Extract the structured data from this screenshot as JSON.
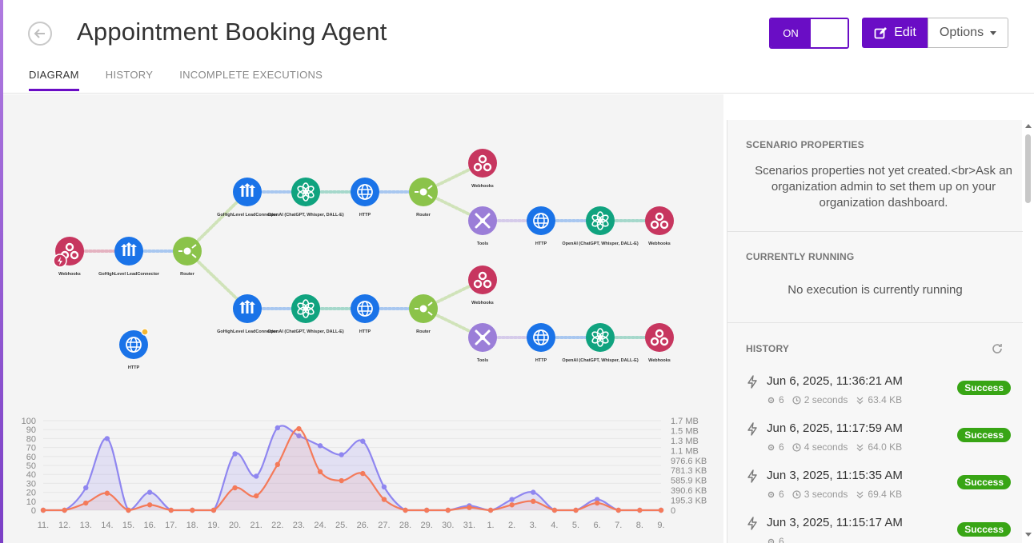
{
  "header": {
    "title": "Appointment Booking Agent",
    "toggle_label": "ON",
    "edit_label": "Edit",
    "options_label": "Options"
  },
  "tabs": [
    {
      "label": "DIAGRAM",
      "active": true
    },
    {
      "label": "HISTORY",
      "active": false
    },
    {
      "label": "INCOMPLETE EXECUTIONS",
      "active": false
    }
  ],
  "diagram": {
    "nodes": [
      {
        "label": "Webhooks",
        "icon": "webhook-icon",
        "color": "#c7365f"
      },
      {
        "label": "GoHighLevel LeadConnector",
        "icon": "gohighlevel-icon",
        "color": "#1a73e8"
      },
      {
        "label": "Router",
        "icon": "router-icon",
        "color": "#8bc34a"
      },
      {
        "label": "GoHighLevel LeadConnector",
        "icon": "gohighlevel-icon",
        "color": "#1a73e8"
      },
      {
        "label": "OpenAI (ChatGPT, Whisper, DALL-E)",
        "icon": "openai-icon",
        "color": "#10a37f"
      },
      {
        "label": "HTTP",
        "icon": "globe-icon",
        "color": "#1a73e8"
      },
      {
        "label": "Router",
        "icon": "router-icon",
        "color": "#8bc34a"
      },
      {
        "label": "Webhooks",
        "icon": "webhook-icon",
        "color": "#c7365f"
      },
      {
        "label": "Tools",
        "icon": "tools-icon",
        "color": "#9b7ed8"
      },
      {
        "label": "HTTP",
        "icon": "globe-icon",
        "color": "#1a73e8"
      },
      {
        "label": "OpenAI (ChatGPT, Whisper, DALL-E)",
        "icon": "openai-icon",
        "color": "#10a37f"
      },
      {
        "label": "Webhooks",
        "icon": "webhook-icon",
        "color": "#c7365f"
      },
      {
        "label": "GoHighLevel LeadConnector",
        "icon": "gohighlevel-icon",
        "color": "#1a73e8"
      },
      {
        "label": "OpenAI (ChatGPT, Whisper, DALL-E)",
        "icon": "openai-icon",
        "color": "#10a37f"
      },
      {
        "label": "HTTP",
        "icon": "globe-icon",
        "color": "#1a73e8"
      },
      {
        "label": "Router",
        "icon": "router-icon",
        "color": "#8bc34a"
      },
      {
        "label": "Webhooks",
        "icon": "webhook-icon",
        "color": "#c7365f"
      },
      {
        "label": "Tools",
        "icon": "tools-icon",
        "color": "#9b7ed8"
      },
      {
        "label": "HTTP",
        "icon": "globe-icon",
        "color": "#1a73e8"
      },
      {
        "label": "OpenAI (ChatGPT, Whisper, DALL-E)",
        "icon": "openai-icon",
        "color": "#10a37f"
      },
      {
        "label": "Webhooks",
        "icon": "webhook-icon",
        "color": "#c7365f"
      },
      {
        "label": "HTTP",
        "icon": "globe-icon",
        "color": "#1a73e8"
      }
    ]
  },
  "chart_data": {
    "type": "area",
    "categories": [
      "11.",
      "12.",
      "13.",
      "14.",
      "15.",
      "16.",
      "17.",
      "18.",
      "19.",
      "20.",
      "21.",
      "22.",
      "23.",
      "24.",
      "25.",
      "26.",
      "27.",
      "28.",
      "29.",
      "30.",
      "31.",
      "1.",
      "2.",
      "3.",
      "4.",
      "5.",
      "6.",
      "7.",
      "8.",
      "9."
    ],
    "ylim_left": [
      0,
      100
    ],
    "left_ticks": [
      "0",
      "10",
      "20",
      "30",
      "40",
      "50",
      "60",
      "70",
      "80",
      "90",
      "100"
    ],
    "right_ticks": [
      "0",
      "195.3 KB",
      "390.6 KB",
      "585.9 KB",
      "781.3 KB",
      "976.6 KB",
      "1.1 MB",
      "1.3 MB",
      "1.5 MB",
      "1.7 MB"
    ],
    "series": [
      {
        "values": [
          0,
          0,
          25,
          80,
          0,
          20,
          0,
          0,
          0,
          63,
          38,
          92,
          83,
          72,
          62,
          77,
          26,
          0,
          0,
          0,
          5,
          0,
          12,
          20,
          0,
          0,
          12,
          0,
          0,
          0
        ],
        "color": "#8f86f0"
      },
      {
        "values": [
          0,
          0,
          8,
          19,
          0,
          6,
          0,
          0,
          0,
          25,
          16,
          51,
          91,
          43,
          33,
          41,
          12,
          0,
          0,
          0,
          3,
          0,
          6,
          10,
          0,
          0,
          8,
          0,
          0,
          0
        ],
        "color": "#f47a5a"
      }
    ]
  },
  "sidebar": {
    "scenario_title": "SCENARIO PROPERTIES",
    "scenario_text": "Scenarios properties not yet created.<br>Ask an organization admin to set them up on your organization dashboard.",
    "running_title": "CURRENTLY RUNNING",
    "running_text": "No execution is currently running",
    "history_title": "HISTORY",
    "history": [
      {
        "date": "Jun 6, 2025, 11:36:21 AM",
        "ops": "6",
        "duration": "2 seconds",
        "size": "63.4 KB",
        "status": "Success"
      },
      {
        "date": "Jun 6, 2025, 11:17:59 AM",
        "ops": "6",
        "duration": "4 seconds",
        "size": "64.0 KB",
        "status": "Success"
      },
      {
        "date": "Jun 3, 2025, 11:15:35 AM",
        "ops": "6",
        "duration": "3 seconds",
        "size": "69.4 KB",
        "status": "Success"
      },
      {
        "date": "Jun 3, 2025, 11:15:17 AM",
        "ops": "6",
        "duration": "",
        "size": "",
        "status": "Success"
      }
    ]
  }
}
